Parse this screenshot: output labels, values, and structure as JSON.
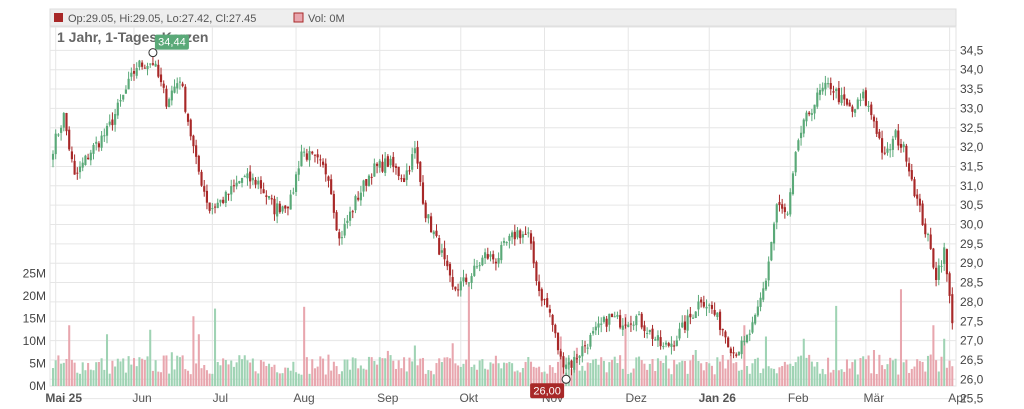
{
  "header": {
    "ohlc_text": "Op:29.05, Hi:29.05, Lo:27.42, Cl:27.45",
    "vol_text": "Vol: 0M",
    "colors": {
      "up": "#5aa978",
      "down": "#a82828",
      "vol_up": "#9fd3b4",
      "vol_down": "#e8a6ae",
      "grid": "#e6e6e6"
    }
  },
  "chart_data": {
    "type": "candlestick",
    "title": "1 Jahr, 1-Tages-Kerzen",
    "price_axis": {
      "ticks": [
        "25,5",
        "26,0",
        "26,5",
        "27,0",
        "27,5",
        "28,0",
        "28,5",
        "29,0",
        "29,5",
        "30,0",
        "30,5",
        "31,0",
        "31,5",
        "32,0",
        "32,5",
        "33,0",
        "33,5",
        "34,0",
        "34,5"
      ],
      "range": [
        25.3,
        35.0
      ]
    },
    "volume_axis": {
      "ticks": [
        "0M",
        "5M",
        "10M",
        "15M",
        "20M",
        "25M"
      ],
      "range": [
        0,
        25
      ]
    },
    "x_labels": [
      {
        "label": "Mai 25",
        "bold": true
      },
      {
        "label": "Jun",
        "bold": false
      },
      {
        "label": "Jul",
        "bold": false
      },
      {
        "label": "Aug",
        "bold": false
      },
      {
        "label": "Sep",
        "bold": false
      },
      {
        "label": "Okt",
        "bold": false
      },
      {
        "label": "Nov",
        "bold": false
      },
      {
        "label": "Dez",
        "bold": false
      },
      {
        "label": "Jan 26",
        "bold": true
      },
      {
        "label": "Feb",
        "bold": false
      },
      {
        "label": "Mär",
        "bold": false
      },
      {
        "label": "Apr",
        "bold": false
      }
    ],
    "close_anchors": [
      [
        0,
        32.0
      ],
      [
        4,
        32.8
      ],
      [
        8,
        31.2
      ],
      [
        14,
        31.9
      ],
      [
        20,
        32.4
      ],
      [
        26,
        33.3
      ],
      [
        31,
        34.1
      ],
      [
        37,
        34.2
      ],
      [
        42,
        33.2
      ],
      [
        47,
        33.8
      ],
      [
        53,
        31.6
      ],
      [
        58,
        30.4
      ],
      [
        64,
        30.7
      ],
      [
        70,
        31.2
      ],
      [
        76,
        31.1
      ],
      [
        82,
        30.4
      ],
      [
        88,
        30.6
      ],
      [
        92,
        31.9
      ],
      [
        98,
        31.6
      ],
      [
        102,
        31.3
      ],
      [
        106,
        29.6
      ],
      [
        112,
        30.6
      ],
      [
        118,
        31.4
      ],
      [
        124,
        31.6
      ],
      [
        130,
        31.2
      ],
      [
        134,
        31.9
      ],
      [
        138,
        30.3
      ],
      [
        144,
        29.2
      ],
      [
        148,
        28.3
      ],
      [
        154,
        28.6
      ],
      [
        160,
        29.2
      ],
      [
        164,
        29.1
      ],
      [
        168,
        29.5
      ],
      [
        172,
        29.8
      ],
      [
        176,
        29.7
      ],
      [
        180,
        28.3
      ],
      [
        184,
        27.7
      ],
      [
        188,
        26.5
      ],
      [
        192,
        26.4
      ],
      [
        196,
        26.8
      ],
      [
        202,
        27.3
      ],
      [
        206,
        27.6
      ],
      [
        210,
        27.5
      ],
      [
        216,
        27.6
      ],
      [
        220,
        27.3
      ],
      [
        226,
        26.8
      ],
      [
        230,
        27.0
      ],
      [
        236,
        27.6
      ],
      [
        240,
        28.1
      ],
      [
        244,
        27.8
      ],
      [
        248,
        27.3
      ],
      [
        252,
        26.7
      ],
      [
        256,
        26.9
      ],
      [
        260,
        27.5
      ],
      [
        264,
        28.6
      ],
      [
        268,
        30.5
      ],
      [
        272,
        30.2
      ],
      [
        276,
        32.2
      ],
      [
        280,
        32.9
      ],
      [
        284,
        33.4
      ],
      [
        288,
        33.6
      ],
      [
        292,
        33.2
      ],
      [
        296,
        32.9
      ],
      [
        300,
        33.3
      ],
      [
        304,
        32.7
      ],
      [
        308,
        31.7
      ],
      [
        312,
        32.3
      ],
      [
        316,
        31.8
      ],
      [
        320,
        30.6
      ],
      [
        324,
        29.6
      ],
      [
        327,
        28.7
      ],
      [
        330,
        29.3
      ],
      [
        333,
        27.45
      ]
    ],
    "volume_peaks": [
      {
        "i": 6,
        "v": 13.5
      },
      {
        "i": 20,
        "v": 11.5
      },
      {
        "i": 36,
        "v": 12.5
      },
      {
        "i": 44,
        "v": 7.5
      },
      {
        "i": 52,
        "v": 15.5
      },
      {
        "i": 54,
        "v": 11.5
      },
      {
        "i": 60,
        "v": 17.2
      },
      {
        "i": 93,
        "v": 17.6
      },
      {
        "i": 124,
        "v": 7.8
      },
      {
        "i": 134,
        "v": 9.0
      },
      {
        "i": 148,
        "v": 9.5
      },
      {
        "i": 154,
        "v": 23.0
      },
      {
        "i": 188,
        "v": 11.0
      },
      {
        "i": 194,
        "v": 8.5
      },
      {
        "i": 212,
        "v": 16.0
      },
      {
        "i": 238,
        "v": 8.0
      },
      {
        "i": 256,
        "v": 13.5
      },
      {
        "i": 264,
        "v": 11.0
      },
      {
        "i": 278,
        "v": 10.5
      },
      {
        "i": 290,
        "v": 17.8
      },
      {
        "i": 304,
        "v": 8.0
      },
      {
        "i": 314,
        "v": 21.5
      },
      {
        "i": 326,
        "v": 13.5
      },
      {
        "i": 330,
        "v": 10.5
      }
    ],
    "annotations": [
      {
        "label": "34,44",
        "price": 34.44,
        "type": "high"
      },
      {
        "label": "26,00",
        "price": 26.0,
        "type": "low"
      }
    ],
    "grid": true
  }
}
